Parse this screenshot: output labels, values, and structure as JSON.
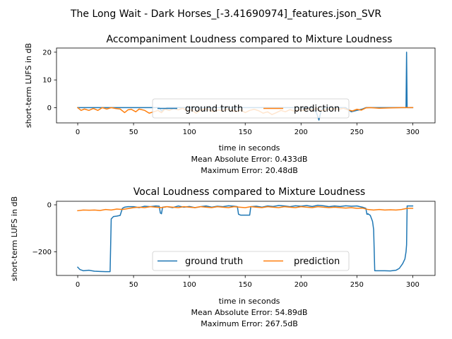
{
  "figure": {
    "suptitle": "The Long Wait - Dark Horses_[-3.41690974]_features.json_SVR"
  },
  "colors": {
    "ground_truth": "#1f77b4",
    "prediction": "#ff7f0e"
  },
  "chart_data": [
    {
      "type": "line",
      "title": "Accompaniment Loudness compared to Mixture Loudness",
      "xlabel": "time in seconds",
      "ylabel": "short-term LUFS in dB",
      "xlim": [
        -19,
        320
      ],
      "ylim": [
        -5.5,
        21.5
      ],
      "xticks": [
        0,
        50,
        100,
        150,
        200,
        250,
        300
      ],
      "yticks": [
        0,
        10,
        20
      ],
      "grid": false,
      "legend": {
        "location": "lower center",
        "columns": 2
      },
      "metrics": [
        "Mean Absolute Error: 0.433dB",
        "Maximum Error: 20.48dB"
      ],
      "series": [
        {
          "name": "ground truth",
          "color": "#1f77b4",
          "points": [
            [
              0,
              0
            ],
            [
              20,
              0
            ],
            [
              40,
              0
            ],
            [
              60,
              0
            ],
            [
              73,
              0
            ],
            [
              75,
              -1.2
            ],
            [
              80,
              0
            ],
            [
              120,
              0
            ],
            [
              150,
              0
            ],
            [
              180,
              0
            ],
            [
              200,
              0
            ],
            [
              210,
              0
            ],
            [
              214,
              -2
            ],
            [
              216,
              -4.5
            ],
            [
              218,
              -1
            ],
            [
              220,
              0
            ],
            [
              240,
              0
            ],
            [
              245,
              -1.5
            ],
            [
              250,
              -1
            ],
            [
              255,
              -0.5
            ],
            [
              258,
              0
            ],
            [
              280,
              0
            ],
            [
              294,
              0
            ],
            [
              294.5,
              20
            ],
            [
              295,
              0
            ],
            [
              300,
              0
            ]
          ]
        },
        {
          "name": "prediction",
          "color": "#ff7f0e",
          "points": [
            [
              0,
              0
            ],
            [
              3,
              -1
            ],
            [
              6,
              -0.5
            ],
            [
              10,
              -1
            ],
            [
              14,
              -0.3
            ],
            [
              18,
              -1
            ],
            [
              22,
              0
            ],
            [
              26,
              -0.5
            ],
            [
              30,
              0
            ],
            [
              34,
              -0.3
            ],
            [
              38,
              -0.5
            ],
            [
              42,
              -1.8
            ],
            [
              45,
              -0.8
            ],
            [
              48,
              -0.6
            ],
            [
              52,
              -1.5
            ],
            [
              55,
              -0.5
            ],
            [
              60,
              -1
            ],
            [
              64,
              -2
            ],
            [
              68,
              -1.5
            ],
            [
              72,
              -1
            ],
            [
              75,
              -1.8
            ],
            [
              78,
              -0.5
            ],
            [
              82,
              -1
            ],
            [
              86,
              -0.3
            ],
            [
              90,
              -0.8
            ],
            [
              94,
              -0.2
            ],
            [
              98,
              -1.2
            ],
            [
              102,
              -0.8
            ],
            [
              106,
              -2
            ],
            [
              110,
              -1
            ],
            [
              114,
              -0.4
            ],
            [
              118,
              -0.9
            ],
            [
              122,
              -1.5
            ],
            [
              126,
              -0.8
            ],
            [
              130,
              -1.3
            ],
            [
              134,
              -0.5
            ],
            [
              138,
              -1
            ],
            [
              142,
              -1.5
            ],
            [
              146,
              -0.8
            ],
            [
              150,
              -1.8
            ],
            [
              154,
              -1
            ],
            [
              158,
              -0.6
            ],
            [
              162,
              -1.1
            ],
            [
              166,
              -2
            ],
            [
              170,
              -1.5
            ],
            [
              174,
              -2.5
            ],
            [
              178,
              -1.8
            ],
            [
              182,
              -1
            ],
            [
              186,
              -1.5
            ],
            [
              190,
              -0.7
            ],
            [
              194,
              -1.3
            ],
            [
              198,
              -0.8
            ],
            [
              202,
              -1.1
            ],
            [
              206,
              -0.5
            ],
            [
              210,
              -0.8
            ],
            [
              214,
              -0.3
            ],
            [
              218,
              -1.1
            ],
            [
              222,
              -0.8
            ],
            [
              226,
              -0.5
            ],
            [
              230,
              -0.3
            ],
            [
              234,
              -0.6
            ],
            [
              238,
              -0.2
            ],
            [
              242,
              -0.8
            ],
            [
              246,
              -1.2
            ],
            [
              250,
              -0.6
            ],
            [
              254,
              -0.9
            ],
            [
              258,
              -0.1
            ],
            [
              262,
              0
            ],
            [
              270,
              -0.2
            ],
            [
              280,
              -0.1
            ],
            [
              290,
              0
            ],
            [
              300,
              0
            ]
          ]
        }
      ]
    },
    {
      "type": "line",
      "title": "Vocal Loudness compared to Mixture Loudness",
      "xlabel": "time in seconds",
      "ylabel": "short-term LUFS in dB",
      "xlim": [
        -19,
        320
      ],
      "ylim": [
        -300,
        15
      ],
      "xticks": [
        0,
        50,
        100,
        150,
        200,
        250,
        300
      ],
      "yticks": [
        -200,
        0
      ],
      "grid": false,
      "legend": {
        "location": "lower center",
        "columns": 2
      },
      "metrics": [
        "Mean Absolute Error: 54.89dB",
        "Maximum Error: 267.5dB"
      ],
      "series": [
        {
          "name": "ground truth",
          "color": "#1f77b4",
          "points": [
            [
              0,
              -265
            ],
            [
              2,
              -275
            ],
            [
              5,
              -280
            ],
            [
              10,
              -278
            ],
            [
              15,
              -282
            ],
            [
              20,
              -283
            ],
            [
              25,
              -284
            ],
            [
              29,
              -284
            ],
            [
              30,
              -60
            ],
            [
              32,
              -50
            ],
            [
              35,
              -48
            ],
            [
              38,
              -45
            ],
            [
              40,
              -15
            ],
            [
              42,
              -10
            ],
            [
              45,
              -8
            ],
            [
              50,
              -8
            ],
            [
              55,
              -12
            ],
            [
              60,
              -6
            ],
            [
              65,
              -8
            ],
            [
              70,
              -5
            ],
            [
              73,
              -6
            ],
            [
              74,
              -35
            ],
            [
              75,
              -38
            ],
            [
              76,
              -10
            ],
            [
              80,
              -8
            ],
            [
              85,
              -12
            ],
            [
              90,
              -5
            ],
            [
              95,
              -10
            ],
            [
              100,
              -7
            ],
            [
              105,
              -12
            ],
            [
              110,
              -8
            ],
            [
              115,
              -5
            ],
            [
              120,
              -10
            ],
            [
              125,
              -6
            ],
            [
              130,
              -8
            ],
            [
              135,
              -4
            ],
            [
              140,
              -6
            ],
            [
              143,
              -8
            ],
            [
              144,
              -40
            ],
            [
              146,
              -44
            ],
            [
              150,
              -44
            ],
            [
              154,
              -44
            ],
            [
              155,
              -8
            ],
            [
              160,
              -6
            ],
            [
              165,
              -10
            ],
            [
              170,
              -5
            ],
            [
              175,
              -7
            ],
            [
              180,
              -3
            ],
            [
              185,
              -5
            ],
            [
              190,
              -8
            ],
            [
              195,
              -4
            ],
            [
              200,
              -6
            ],
            [
              205,
              -3
            ],
            [
              210,
              -7
            ],
            [
              215,
              -2
            ],
            [
              220,
              -4
            ],
            [
              225,
              -8
            ],
            [
              230,
              -5
            ],
            [
              235,
              -7
            ],
            [
              240,
              -4
            ],
            [
              245,
              -6
            ],
            [
              250,
              -5
            ],
            [
              255,
              -10
            ],
            [
              258,
              -15
            ],
            [
              259,
              -40
            ],
            [
              260,
              -38
            ],
            [
              262,
              -45
            ],
            [
              264,
              -70
            ],
            [
              265,
              -105
            ],
            [
              266,
              -280
            ],
            [
              270,
              -280
            ],
            [
              275,
              -280
            ],
            [
              280,
              -281
            ],
            [
              285,
              -278
            ],
            [
              288,
              -270
            ],
            [
              291,
              -250
            ],
            [
              293,
              -230
            ],
            [
              294,
              -200
            ],
            [
              294.5,
              -170
            ],
            [
              295,
              -5
            ],
            [
              298,
              -5
            ],
            [
              300,
              -5
            ]
          ]
        },
        {
          "name": "prediction",
          "color": "#ff7f0e",
          "points": [
            [
              0,
              -25
            ],
            [
              5,
              -22
            ],
            [
              10,
              -23
            ],
            [
              15,
              -22
            ],
            [
              20,
              -24
            ],
            [
              25,
              -20
            ],
            [
              30,
              -22
            ],
            [
              35,
              -18
            ],
            [
              40,
              -20
            ],
            [
              45,
              -16
            ],
            [
              50,
              -12
            ],
            [
              55,
              -10
            ],
            [
              60,
              -12
            ],
            [
              65,
              -8
            ],
            [
              70,
              -10
            ],
            [
              75,
              -12
            ],
            [
              80,
              -8
            ],
            [
              85,
              -10
            ],
            [
              90,
              -12
            ],
            [
              95,
              -8
            ],
            [
              100,
              -10
            ],
            [
              105,
              -12
            ],
            [
              110,
              -8
            ],
            [
              115,
              -10
            ],
            [
              120,
              -12
            ],
            [
              125,
              -8
            ],
            [
              130,
              -10
            ],
            [
              135,
              -12
            ],
            [
              140,
              -8
            ],
            [
              145,
              -10
            ],
            [
              150,
              -12
            ],
            [
              155,
              -8
            ],
            [
              160,
              -10
            ],
            [
              165,
              -12
            ],
            [
              170,
              -8
            ],
            [
              175,
              -10
            ],
            [
              180,
              -12
            ],
            [
              185,
              -8
            ],
            [
              190,
              -10
            ],
            [
              195,
              -12
            ],
            [
              200,
              -8
            ],
            [
              205,
              -10
            ],
            [
              210,
              -12
            ],
            [
              215,
              -8
            ],
            [
              220,
              -10
            ],
            [
              225,
              -12
            ],
            [
              230,
              -10
            ],
            [
              235,
              -12
            ],
            [
              240,
              -14
            ],
            [
              245,
              -12
            ],
            [
              250,
              -15
            ],
            [
              255,
              -14
            ],
            [
              260,
              -20
            ],
            [
              265,
              -22
            ],
            [
              270,
              -20
            ],
            [
              275,
              -22
            ],
            [
              280,
              -21
            ],
            [
              285,
              -22
            ],
            [
              290,
              -20
            ],
            [
              295,
              -15
            ],
            [
              300,
              -15
            ]
          ]
        }
      ]
    }
  ]
}
